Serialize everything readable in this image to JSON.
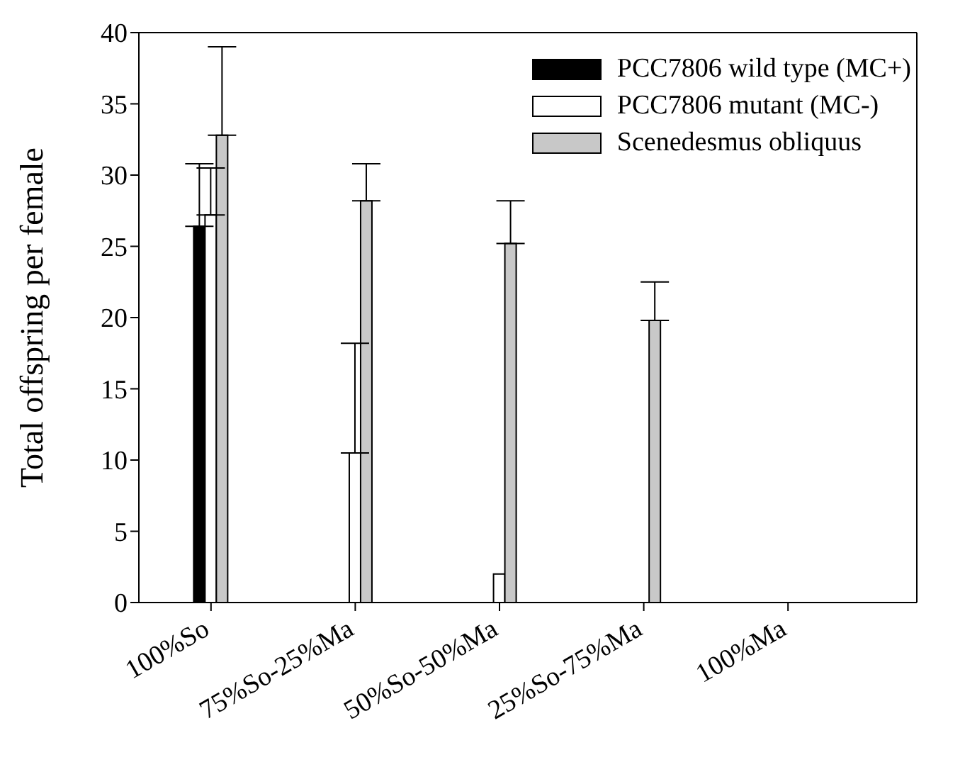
{
  "chart_data": {
    "type": "bar",
    "ylabel": "Total offspring per female",
    "categories": [
      "100%So",
      "75%So-25%Ma",
      "50%So-50%Ma",
      "25%So-75%Ma",
      "100%Ma"
    ],
    "series": [
      {
        "name": "PCC7806 wild type (MC+)",
        "color": "#000000",
        "values": [
          26.4,
          null,
          null,
          null,
          null
        ],
        "errors": [
          [
            26.4,
            30.8
          ],
          null,
          null,
          null,
          null
        ]
      },
      {
        "name": "PCC7806 mutant (MC-)",
        "color": "#ffffff",
        "values": [
          27.2,
          10.5,
          2.0,
          null,
          null
        ],
        "errors": [
          [
            27.2,
            30.5
          ],
          [
            10.5,
            18.2
          ],
          null,
          null,
          null
        ]
      },
      {
        "name": "Scenedesmus obliquus",
        "color": "#c8c8c8",
        "values": [
          32.8,
          28.2,
          25.2,
          19.8,
          null
        ],
        "errors": [
          [
            32.8,
            39.0
          ],
          [
            28.2,
            30.8
          ],
          [
            25.2,
            28.2
          ],
          [
            19.8,
            22.5
          ],
          null
        ]
      }
    ],
    "ylim": [
      0,
      40
    ],
    "yticks": [
      0,
      5,
      10,
      15,
      20,
      25,
      30,
      35,
      40
    ],
    "grid": false,
    "legend": "top right"
  }
}
